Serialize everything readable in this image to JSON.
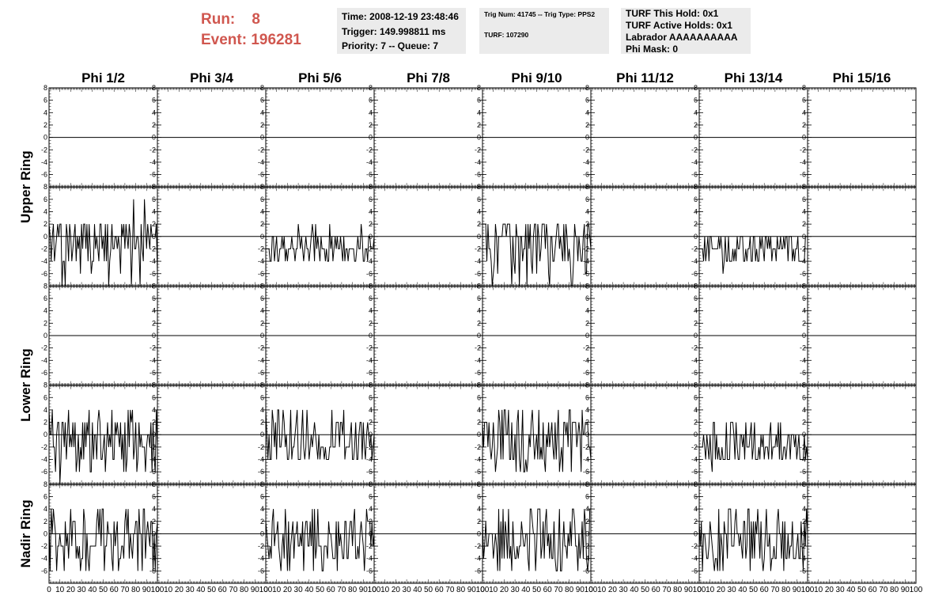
{
  "header": {
    "run_label": "Run:",
    "run_value": "8",
    "event_label": "Event:",
    "event_value": "196281"
  },
  "info_box_1": {
    "time": "Time: 2008-12-19 23:48:46",
    "trigger": "Trigger: 149.998811 ms",
    "priority": "Priority: 7 -- Queue: 7"
  },
  "info_box_2": {
    "trig": "Trig Num: 41745 -- Trig Type: PPS2",
    "turf": "TURF: 107290"
  },
  "info_box_3": {
    "hold": "TURF This Hold: 0x1",
    "active_holds": "TURF Active Holds: 0x1",
    "labrador": "Labrador AAAAAAAAAA",
    "phi_mask": "Phi Mask: 0"
  },
  "chart_data": {
    "type": "line",
    "columns": [
      "Phi 1/2",
      "Phi 3/4",
      "Phi 5/6",
      "Phi 7/8",
      "Phi 9/10",
      "Phi 11/12",
      "Phi 13/14",
      "Phi 15/16"
    ],
    "ring_labels": [
      "Upper Ring",
      "Lower Ring",
      "Nadir Ring"
    ],
    "rows_per_ring": [
      2,
      2,
      1
    ],
    "xlim": [
      0,
      100
    ],
    "ylim": [
      -8,
      8
    ],
    "x_tick_labels": [
      "0",
      "10",
      "20",
      "30",
      "40",
      "50",
      "60",
      "70",
      "80",
      "90",
      "100"
    ],
    "y_tick_labels": [
      "-6",
      "-4",
      "-2",
      "0",
      "2",
      "4",
      "6",
      "8"
    ],
    "axis_color": "#000000",
    "trace_color": "#000000",
    "active_panels": [
      {
        "row": 1,
        "col": 0,
        "seed": 11,
        "values": [
          -2,
          2,
          0,
          -2,
          2,
          -4,
          0,
          -6,
          2,
          -2,
          -4,
          0,
          2,
          -2,
          0,
          -4,
          2,
          -2,
          0,
          -8
        ],
        "spikes": [
          [
            78,
            6
          ],
          [
            88,
            6
          ],
          [
            55,
            -8
          ],
          [
            15,
            -8
          ]
        ]
      },
      {
        "row": 1,
        "col": 2,
        "seed": 21,
        "values": [
          -2,
          -4,
          0,
          -2,
          -4,
          -2,
          0,
          -4,
          -2,
          0,
          2,
          -4,
          -2,
          -4,
          0,
          -2,
          -4,
          -2,
          0,
          -4
        ],
        "spikes": [
          [
            30,
            2
          ]
        ]
      },
      {
        "row": 1,
        "col": 4,
        "seed": 31,
        "values": [
          2,
          -2,
          0,
          -4,
          2,
          -6,
          0,
          -2,
          2,
          -4,
          0,
          -2,
          2,
          -6,
          0,
          -2,
          2,
          -4,
          0,
          -8
        ],
        "spikes": [
          [
            62,
            -8
          ],
          [
            82,
            -8
          ]
        ]
      },
      {
        "row": 1,
        "col": 6,
        "seed": 41,
        "values": [
          -2,
          -4,
          0,
          -2,
          -4,
          -2,
          0,
          -4,
          -2,
          0,
          -4,
          -2,
          -4,
          0,
          -2,
          -4,
          -2,
          0,
          -4,
          -2
        ],
        "spikes": [
          [
            22,
            -6
          ]
        ]
      },
      {
        "row": 3,
        "col": 0,
        "seed": 51,
        "values": [
          2,
          -2,
          0,
          -4,
          4,
          -2,
          0,
          -6,
          2,
          -4,
          0,
          -2,
          2,
          -4,
          4,
          -2,
          0,
          -6,
          2,
          -4
        ],
        "spikes": [
          [
            10,
            -8
          ],
          [
            25,
            -6
          ]
        ]
      },
      {
        "row": 3,
        "col": 2,
        "seed": 61,
        "values": [
          -2,
          -4,
          0,
          2,
          -4,
          -2,
          0,
          -4,
          2,
          0,
          -4,
          -2,
          4,
          0,
          -2,
          -4,
          -2,
          0,
          -4,
          -2
        ],
        "spikes": [
          [
            72,
            4
          ]
        ]
      },
      {
        "row": 3,
        "col": 4,
        "seed": 71,
        "values": [
          2,
          -2,
          0,
          -4,
          4,
          -2,
          0,
          -6,
          2,
          -4,
          0,
          -2,
          2,
          -4,
          4,
          -2,
          0,
          -6,
          2,
          -4
        ],
        "spikes": [
          [
            82,
            -6
          ]
        ]
      },
      {
        "row": 3,
        "col": 6,
        "seed": 81,
        "values": [
          -2,
          -4,
          0,
          -2,
          -4,
          2,
          0,
          -4,
          -2,
          0,
          -4,
          -2,
          -4,
          0,
          2,
          -4,
          -2,
          0,
          -4,
          -2
        ],
        "spikes": [
          [
            12,
            -6
          ]
        ]
      },
      {
        "row": 4,
        "col": 0,
        "seed": 91,
        "values": [
          2,
          -2,
          0,
          -4,
          2,
          -6,
          0,
          -2,
          4,
          -4,
          0,
          -2,
          2,
          -4,
          0,
          -6,
          2,
          -2,
          4,
          -4
        ],
        "spikes": []
      },
      {
        "row": 4,
        "col": 2,
        "seed": 101,
        "values": [
          2,
          -2,
          0,
          -4,
          2,
          -6,
          0,
          -2,
          4,
          -4,
          0,
          -2,
          2,
          -4,
          0,
          -6,
          2,
          -2,
          4,
          -4
        ],
        "spikes": []
      },
      {
        "row": 4,
        "col": 4,
        "seed": 111,
        "values": [
          2,
          -2,
          0,
          -4,
          2,
          -6,
          0,
          -2,
          4,
          -4,
          0,
          -2,
          2,
          -4,
          0,
          -6,
          2,
          -2,
          4,
          -4
        ],
        "spikes": []
      },
      {
        "row": 4,
        "col": 6,
        "seed": 121,
        "values": [
          2,
          -2,
          0,
          -4,
          2,
          -6,
          0,
          -2,
          4,
          -4,
          0,
          -2,
          2,
          -4,
          0,
          -6,
          2,
          -2,
          4,
          -4
        ],
        "spikes": []
      }
    ]
  }
}
